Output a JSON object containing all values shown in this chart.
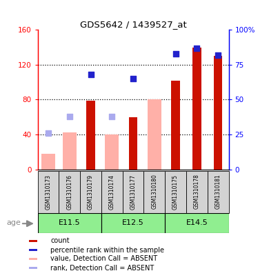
{
  "title": "GDS5642 / 1439527_at",
  "samples": [
    "GSM1310173",
    "GSM1310176",
    "GSM1310179",
    "GSM1310174",
    "GSM1310177",
    "GSM1310180",
    "GSM1310175",
    "GSM1310178",
    "GSM1310181"
  ],
  "age_groups": [
    {
      "label": "E11.5",
      "start": 0,
      "end": 3
    },
    {
      "label": "E12.5",
      "start": 3,
      "end": 6
    },
    {
      "label": "E14.5",
      "start": 6,
      "end": 9
    }
  ],
  "count_values": [
    0,
    0,
    79,
    0,
    60,
    0,
    102,
    140,
    130
  ],
  "percentile_values": [
    0,
    0,
    68,
    0,
    65,
    0,
    83,
    87,
    82
  ],
  "absent_value": [
    18,
    42,
    0,
    40,
    0,
    80,
    0,
    0,
    0
  ],
  "absent_rank": [
    26,
    38,
    0,
    38,
    0,
    0,
    0,
    0,
    0
  ],
  "ylim_left": [
    0,
    160
  ],
  "ylim_right": [
    0,
    100
  ],
  "yticks_left": [
    0,
    40,
    80,
    120,
    160
  ],
  "yticks_right": [
    0,
    25,
    50,
    75,
    100
  ],
  "ytick_labels_right": [
    "0",
    "25",
    "50",
    "75",
    "100%"
  ],
  "bar_width": 0.4,
  "count_color": "#CC1100",
  "percentile_color": "#2222CC",
  "absent_value_color": "#FFB0A8",
  "absent_rank_color": "#AAAAEE",
  "age_bg_color": "#90EE90",
  "sample_bg_color": "#D3D3D3",
  "legend_items": [
    {
      "label": "count",
      "color": "#CC1100"
    },
    {
      "label": "percentile rank within the sample",
      "color": "#2222CC"
    },
    {
      "label": "value, Detection Call = ABSENT",
      "color": "#FFB0A8"
    },
    {
      "label": "rank, Detection Call = ABSENT",
      "color": "#AAAAEE"
    }
  ]
}
